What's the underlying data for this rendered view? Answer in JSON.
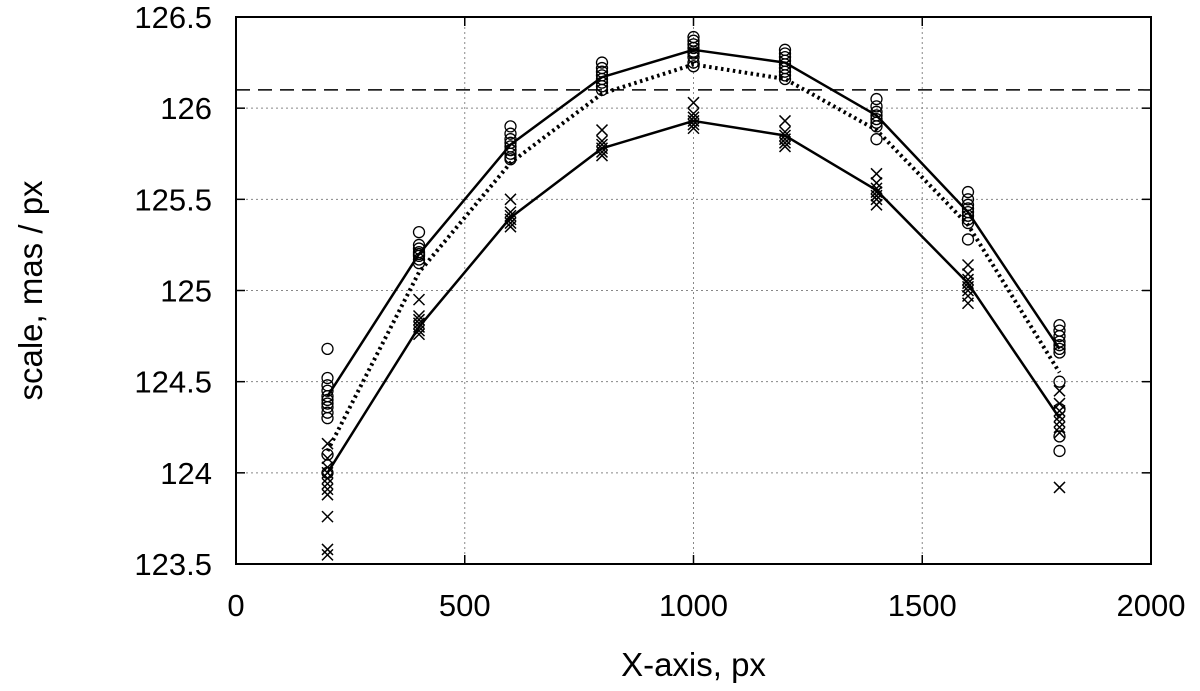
{
  "chart_data": {
    "type": "scatter",
    "title": "",
    "xlabel": "X-axis, px",
    "ylabel": "scale, mas / px",
    "xlim": [
      0,
      2000
    ],
    "ylim": [
      123.5,
      126.5
    ],
    "xticks": [
      "0",
      "500",
      "1000",
      "1500",
      "2000"
    ],
    "yticks": [
      "123.5",
      "124",
      "124.5",
      "125",
      "125.5",
      "126",
      "126.5"
    ],
    "xtick_values": [
      0,
      500,
      1000,
      1500,
      2000
    ],
    "ytick_values": [
      123.5,
      124,
      124.5,
      125,
      125.5,
      126,
      126.5
    ],
    "grid": true,
    "reference_line": {
      "y": 126.1,
      "style": "dashed"
    },
    "series": [
      {
        "marker": "circle",
        "x": [
          200,
          400,
          600,
          800,
          1000,
          1200,
          1400,
          1600,
          1800
        ],
        "points": [
          [
            124.68,
            124.52,
            124.48,
            124.45,
            124.42,
            124.4,
            124.38,
            124.36,
            124.33,
            124.3,
            124.1,
            124.0
          ],
          [
            125.32,
            125.25,
            125.23,
            125.21,
            125.2,
            125.19,
            125.17,
            125.15
          ],
          [
            125.9,
            125.86,
            125.83,
            125.81,
            125.79,
            125.77,
            125.75,
            125.73,
            125.72
          ],
          [
            126.25,
            126.22,
            126.2,
            126.18,
            126.16,
            126.14,
            126.12,
            126.1
          ],
          [
            126.39,
            126.37,
            126.35,
            126.33,
            126.31,
            126.3,
            126.28,
            126.25,
            126.23
          ],
          [
            126.32,
            126.3,
            126.28,
            126.26,
            126.24,
            126.22,
            126.2,
            126.18,
            126.16
          ],
          [
            126.05,
            126.01,
            125.98,
            125.96,
            125.94,
            125.92,
            125.9,
            125.83
          ],
          [
            125.54,
            125.5,
            125.47,
            125.45,
            125.43,
            125.41,
            125.39,
            125.37,
            125.28
          ],
          [
            124.81,
            124.78,
            124.75,
            124.72,
            124.7,
            124.68,
            124.66,
            124.5,
            124.35,
            124.2,
            124.12
          ]
        ]
      },
      {
        "marker": "cross",
        "x": [
          200,
          400,
          600,
          800,
          1000,
          1200,
          1400,
          1600,
          1800
        ],
        "points": [
          [
            124.16,
            124.08,
            124.03,
            124.0,
            123.97,
            123.94,
            123.91,
            123.88,
            123.76,
            123.58,
            123.55
          ],
          [
            124.95,
            124.86,
            124.84,
            124.82,
            124.8,
            124.78,
            124.76
          ],
          [
            125.5,
            125.43,
            125.41,
            125.39,
            125.37,
            125.35
          ],
          [
            125.88,
            125.82,
            125.8,
            125.78,
            125.76,
            125.74
          ],
          [
            126.03,
            125.97,
            125.95,
            125.93,
            125.91,
            125.89
          ],
          [
            125.93,
            125.87,
            125.85,
            125.83,
            125.81,
            125.79
          ],
          [
            125.64,
            125.59,
            125.56,
            125.54,
            125.52,
            125.5,
            125.47
          ],
          [
            125.14,
            125.09,
            125.06,
            125.04,
            125.02,
            125.0,
            124.97,
            124.93
          ],
          [
            124.45,
            124.38,
            124.34,
            124.31,
            124.28,
            124.25,
            124.22,
            123.92
          ]
        ]
      }
    ],
    "lines": [
      {
        "style": "solid",
        "x": [
          200,
          400,
          600,
          800,
          1000,
          1200,
          1400,
          1600,
          1800
        ],
        "y": [
          124.42,
          125.2,
          125.8,
          126.17,
          126.32,
          126.25,
          125.96,
          125.43,
          124.68
        ]
      },
      {
        "style": "dotted",
        "x": [
          200,
          400,
          600,
          800,
          1000,
          1200,
          1400,
          1600,
          1800
        ],
        "y": [
          124.12,
          125.1,
          125.7,
          126.08,
          126.24,
          126.16,
          125.88,
          125.36,
          124.55
        ]
      },
      {
        "style": "solid",
        "x": [
          200,
          400,
          600,
          800,
          1000,
          1200,
          1400,
          1600,
          1800
        ],
        "y": [
          124.0,
          124.8,
          125.4,
          125.78,
          125.93,
          125.85,
          125.55,
          125.04,
          124.3
        ]
      }
    ]
  }
}
